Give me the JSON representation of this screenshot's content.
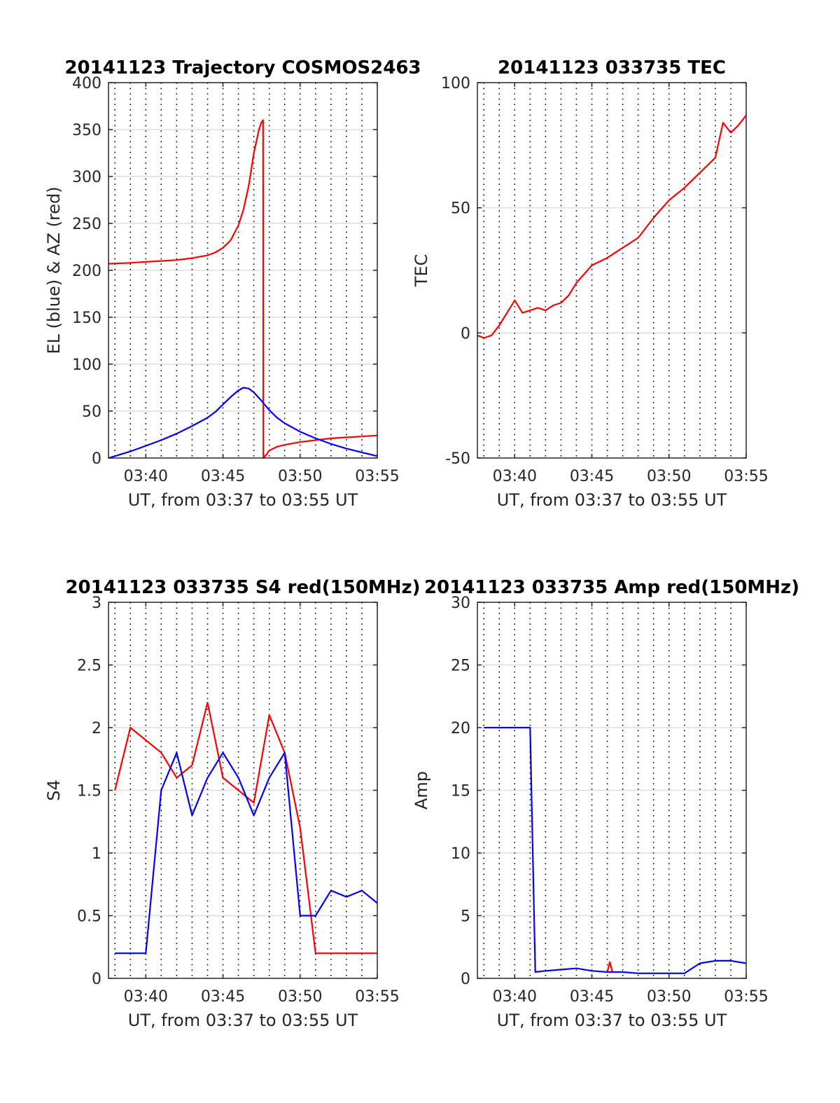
{
  "chart_data": [
    {
      "type": "line",
      "title": "20141123 Trajectory COSMOS2463",
      "xlabel": "UT, from 03:37 to 03:55 UT",
      "ylabel": "EL (blue) & AZ (red)",
      "xlim": [
        "03:37:35",
        "03:55"
      ],
      "ylim": [
        0,
        400
      ],
      "xticks": [
        "03:40",
        "03:45",
        "03:50",
        "03:55"
      ],
      "yticks": [
        0,
        50,
        100,
        150,
        200,
        250,
        300,
        350,
        400
      ],
      "grid": true,
      "minor_vertical_grid": "dotted, every 1 minute",
      "series": [
        {
          "color": "#ff0000",
          "x": [
            "03:37:35",
            "03:39",
            "03:40",
            "03:41",
            "03:42",
            "03:43",
            "03:44",
            "03:44:30",
            "03:45",
            "03:45:30",
            "03:46",
            "03:46:20",
            "03:46:40",
            "03:47",
            "03:47:20",
            "03:47:30",
            "03:47:36",
            "03:47:37",
            "03:47:50",
            "03:48",
            "03:48:30",
            "03:49",
            "03:50",
            "03:51",
            "03:52",
            "03:53",
            "03:54",
            "03:55"
          ],
          "values": [
            207,
            208,
            209,
            210,
            211,
            213,
            216,
            219,
            224,
            232,
            248,
            265,
            290,
            325,
            350,
            358,
            360,
            0,
            4,
            8,
            12,
            14,
            17,
            19,
            21,
            22,
            23,
            24
          ]
        },
        {
          "color": "#0000ff",
          "x": [
            "03:37:35",
            "03:38",
            "03:39",
            "03:40",
            "03:41",
            "03:42",
            "03:43",
            "03:44",
            "03:44:30",
            "03:45",
            "03:45:30",
            "03:46",
            "03:46:20",
            "03:46:40",
            "03:47",
            "03:47:30",
            "03:48",
            "03:48:30",
            "03:49",
            "03:50",
            "03:51",
            "03:52",
            "03:53",
            "03:54",
            "03:55"
          ],
          "values": [
            0,
            2,
            7,
            13,
            19,
            26,
            34,
            43,
            49,
            57,
            65,
            72,
            75,
            74,
            70,
            61,
            51,
            43,
            37,
            28,
            21,
            15,
            10,
            6,
            2
          ]
        }
      ]
    },
    {
      "type": "line",
      "title": "20141123 033735 TEC",
      "xlabel": "UT, from 03:37 to 03:55 UT",
      "ylabel": "TEC",
      "xlim": [
        "03:37:35",
        "03:55"
      ],
      "ylim": [
        -50,
        100
      ],
      "xticks": [
        "03:40",
        "03:45",
        "03:50",
        "03:55"
      ],
      "yticks": [
        -50,
        0,
        50,
        100
      ],
      "grid": true,
      "minor_vertical_grid": "dotted, every 1 minute",
      "series": [
        {
          "color": "#ff0000",
          "x": [
            "03:37:35",
            "03:38",
            "03:38:30",
            "03:39",
            "03:39:30",
            "03:40",
            "03:40:30",
            "03:41",
            "03:41:30",
            "03:42",
            "03:42:30",
            "03:43",
            "03:43:30",
            "03:44",
            "03:45",
            "03:46",
            "03:47",
            "03:48",
            "03:49",
            "03:50",
            "03:51",
            "03:52",
            "03:53",
            "03:53:30",
            "03:54",
            "03:54:30",
            "03:55"
          ],
          "values": [
            -1,
            -2,
            -1,
            3,
            8,
            13,
            8,
            9,
            10,
            9,
            11,
            12,
            15,
            20,
            27,
            30,
            34,
            38,
            46,
            53,
            58,
            64,
            70,
            84,
            80,
            83,
            87
          ]
        }
      ]
    },
    {
      "type": "line",
      "title": "20141123 033735 S4 red(150MHz)",
      "xlabel": "UT, from 03:37 to 03:55 UT",
      "ylabel": "S4",
      "xlim": [
        "03:37:35",
        "03:55"
      ],
      "ylim": [
        0,
        3
      ],
      "xticks": [
        "03:40",
        "03:45",
        "03:50",
        "03:55"
      ],
      "yticks": [
        0,
        0.5,
        1,
        1.5,
        2,
        2.5,
        3
      ],
      "grid": true,
      "minor_vertical_grid": "dotted, every 1 minute",
      "series": [
        {
          "color": "#ff0000",
          "x": [
            "03:38",
            "03:39",
            "03:40",
            "03:41",
            "03:42",
            "03:43",
            "03:44",
            "03:45",
            "03:46",
            "03:47",
            "03:48",
            "03:49",
            "03:50",
            "03:51",
            "03:52",
            "03:53",
            "03:54",
            "03:55"
          ],
          "values": [
            1.5,
            2.0,
            1.9,
            1.8,
            1.6,
            1.7,
            2.2,
            1.6,
            1.5,
            1.4,
            2.1,
            1.8,
            1.2,
            0.2,
            0.2,
            0.2,
            0.2,
            0.2
          ]
        },
        {
          "color": "#0000ff",
          "x": [
            "03:38",
            "03:39",
            "03:40",
            "03:41",
            "03:42",
            "03:43",
            "03:44",
            "03:45",
            "03:46",
            "03:47",
            "03:48",
            "03:49",
            "03:50",
            "03:51",
            "03:52",
            "03:53",
            "03:54",
            "03:55"
          ],
          "values": [
            0.2,
            0.2,
            0.2,
            1.5,
            1.8,
            1.3,
            1.6,
            1.8,
            1.6,
            1.3,
            1.6,
            1.8,
            0.5,
            0.5,
            0.7,
            0.65,
            0.7,
            0.6
          ]
        }
      ]
    },
    {
      "type": "line",
      "title": "20141123 033735 Amp red(150MHz)",
      "xlabel": "UT, from 03:37 to 03:55 UT",
      "ylabel": "Amp",
      "xlim": [
        "03:37:35",
        "03:55"
      ],
      "ylim": [
        0,
        30
      ],
      "xticks": [
        "03:40",
        "03:45",
        "03:50",
        "03:55"
      ],
      "yticks": [
        0,
        5,
        10,
        15,
        20,
        25,
        30
      ],
      "grid": true,
      "minor_vertical_grid": "dotted, every 1 minute",
      "series": [
        {
          "color": "#ff0000",
          "x": [
            "03:46:00",
            "03:46:10",
            "03:46:20"
          ],
          "values": [
            0.5,
            1.3,
            0.5
          ]
        },
        {
          "color": "#0000ff",
          "x": [
            "03:38",
            "03:39",
            "03:40",
            "03:41",
            "03:41:20",
            "03:42",
            "03:43",
            "03:44",
            "03:45",
            "03:46",
            "03:47",
            "03:48",
            "03:49",
            "03:50",
            "03:51",
            "03:52",
            "03:53",
            "03:54",
            "03:55"
          ],
          "values": [
            20,
            20,
            20,
            20,
            0.5,
            0.6,
            0.7,
            0.8,
            0.6,
            0.5,
            0.5,
            0.4,
            0.4,
            0.4,
            0.4,
            1.2,
            1.4,
            1.4,
            1.2
          ]
        }
      ]
    }
  ]
}
